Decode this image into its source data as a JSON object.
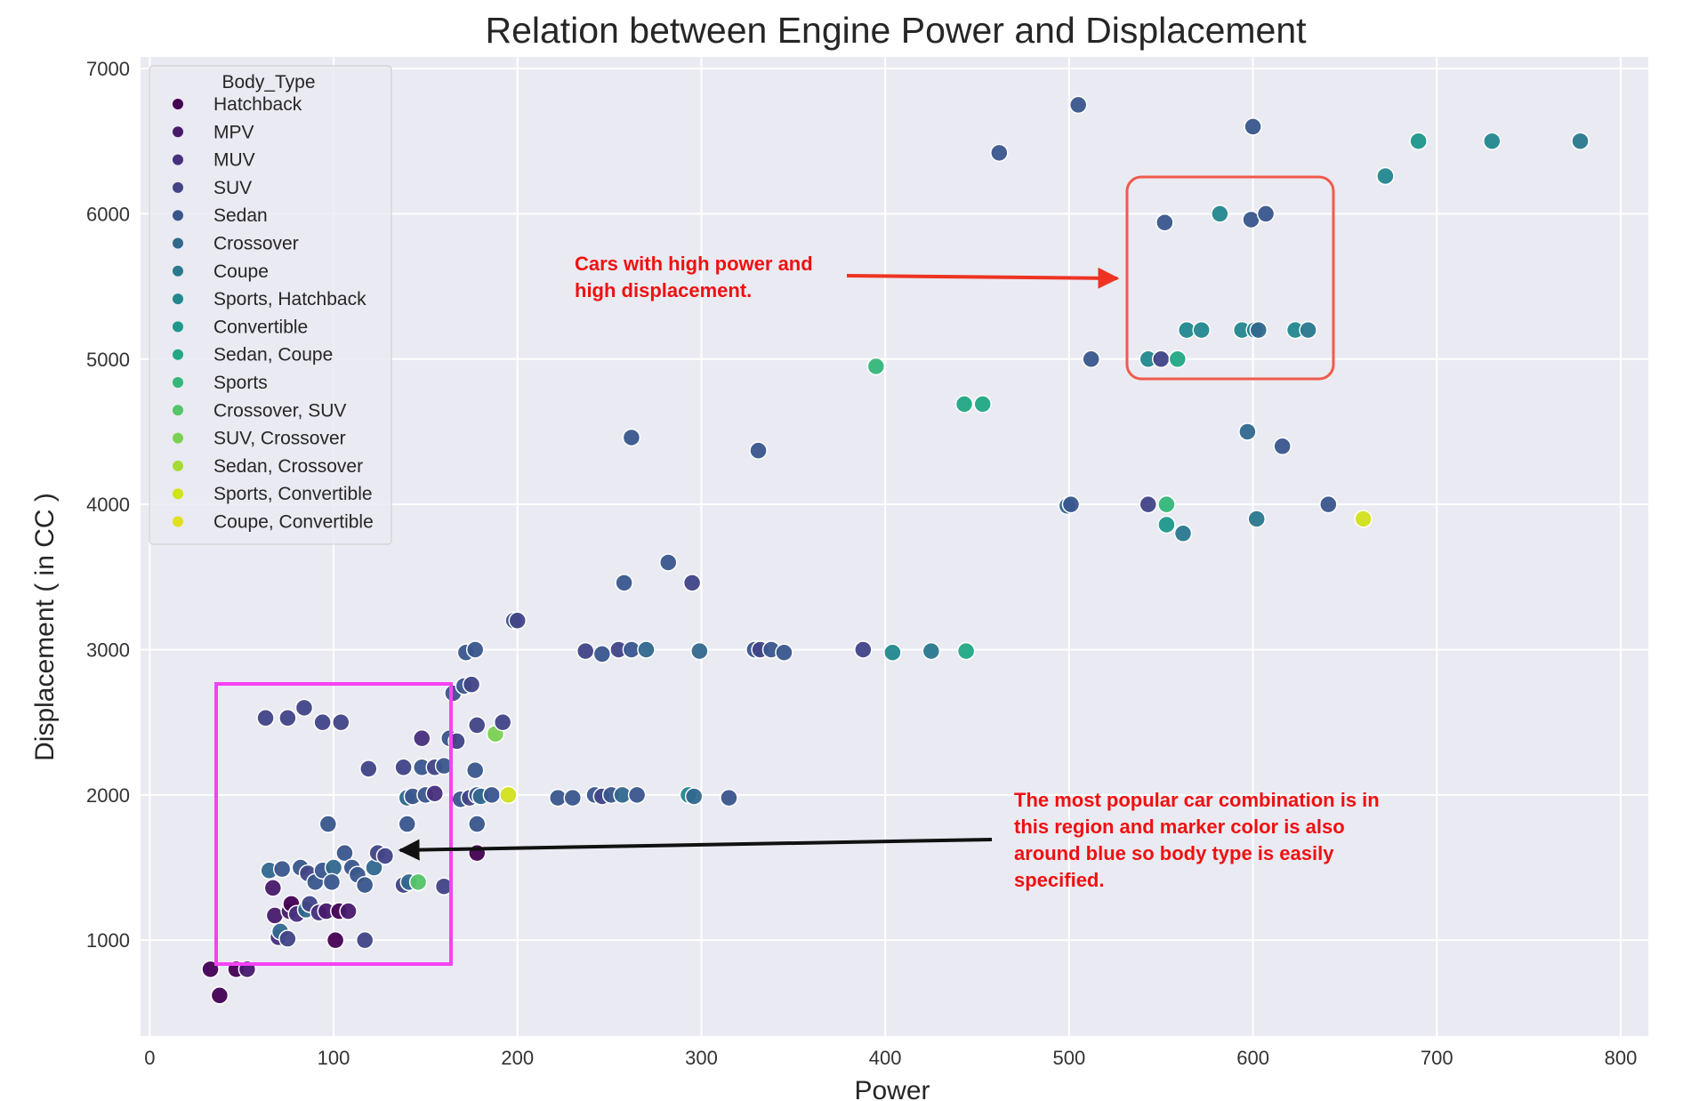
{
  "chart_data": {
    "type": "scatter",
    "title": "Relation between Engine Power and Displacement",
    "xlabel": "Power",
    "ylabel": "Displacement ( in CC )",
    "xlim": [
      -5,
      815
    ],
    "ylim": [
      340,
      7080
    ],
    "xticks": [
      0,
      100,
      200,
      300,
      400,
      500,
      600,
      700,
      800
    ],
    "yticks": [
      1000,
      2000,
      3000,
      4000,
      5000,
      6000,
      7000
    ],
    "grid": true,
    "background": "#eaeaf2",
    "legend": {
      "title": "Body_Type",
      "placement": "top-left",
      "entries": [
        {
          "name": "Hatchback",
          "color": "#440154"
        },
        {
          "name": "MPV",
          "color": "#481a6c"
        },
        {
          "name": "MUV",
          "color": "#472f7d"
        },
        {
          "name": "SUV",
          "color": "#414487"
        },
        {
          "name": "Sedan",
          "color": "#39568c"
        },
        {
          "name": "Crossover",
          "color": "#31688e"
        },
        {
          "name": "Coupe",
          "color": "#2a788e"
        },
        {
          "name": "Sports, Hatchback",
          "color": "#23888e"
        },
        {
          "name": "Convertible",
          "color": "#1f988b"
        },
        {
          "name": "Sedan, Coupe",
          "color": "#22a884"
        },
        {
          "name": "Sports",
          "color": "#35b779"
        },
        {
          "name": "Crossover, SUV",
          "color": "#54c568"
        },
        {
          "name": "SUV, Crossover",
          "color": "#7ad151"
        },
        {
          "name": "Sedan, Crossover",
          "color": "#a5db36"
        },
        {
          "name": "Sports, Convertible",
          "color": "#d2e21b"
        },
        {
          "name": "Coupe, Convertible",
          "color": "#e0e020"
        }
      ]
    },
    "points": [
      {
        "x": 33,
        "y": 800,
        "c": 0
      },
      {
        "x": 38,
        "y": 620,
        "c": 0
      },
      {
        "x": 47,
        "y": 800,
        "c": 0
      },
      {
        "x": 53,
        "y": 800,
        "c": 1
      },
      {
        "x": 63,
        "y": 2530,
        "c": 3
      },
      {
        "x": 75,
        "y": 2530,
        "c": 3
      },
      {
        "x": 84,
        "y": 2600,
        "c": 3
      },
      {
        "x": 94,
        "y": 2500,
        "c": 3
      },
      {
        "x": 104,
        "y": 2500,
        "c": 3
      },
      {
        "x": 97,
        "y": 1800,
        "c": 4
      },
      {
        "x": 65,
        "y": 1480,
        "c": 5
      },
      {
        "x": 72,
        "y": 1490,
        "c": 4
      },
      {
        "x": 82,
        "y": 1500,
        "c": 4
      },
      {
        "x": 86,
        "y": 1460,
        "c": 3
      },
      {
        "x": 90,
        "y": 1400,
        "c": 4
      },
      {
        "x": 94,
        "y": 1480,
        "c": 4
      },
      {
        "x": 100,
        "y": 1500,
        "c": 5
      },
      {
        "x": 99,
        "y": 1400,
        "c": 4
      },
      {
        "x": 106,
        "y": 1600,
        "c": 4
      },
      {
        "x": 110,
        "y": 1500,
        "c": 4
      },
      {
        "x": 113,
        "y": 1450,
        "c": 4
      },
      {
        "x": 117,
        "y": 1380,
        "c": 4
      },
      {
        "x": 122,
        "y": 1500,
        "c": 5
      },
      {
        "x": 124,
        "y": 1600,
        "c": 3
      },
      {
        "x": 128,
        "y": 1580,
        "c": 3
      },
      {
        "x": 67,
        "y": 1360,
        "c": 1
      },
      {
        "x": 68,
        "y": 1170,
        "c": 1
      },
      {
        "x": 70,
        "y": 1020,
        "c": 2
      },
      {
        "x": 71,
        "y": 1060,
        "c": 5
      },
      {
        "x": 76,
        "y": 1200,
        "c": 1
      },
      {
        "x": 77,
        "y": 1250,
        "c": 0
      },
      {
        "x": 75,
        "y": 1010,
        "c": 3
      },
      {
        "x": 80,
        "y": 1180,
        "c": 2
      },
      {
        "x": 85,
        "y": 1210,
        "c": 5
      },
      {
        "x": 87,
        "y": 1250,
        "c": 3
      },
      {
        "x": 92,
        "y": 1190,
        "c": 2
      },
      {
        "x": 96,
        "y": 1200,
        "c": 1
      },
      {
        "x": 103,
        "y": 1200,
        "c": 0
      },
      {
        "x": 108,
        "y": 1200,
        "c": 1
      },
      {
        "x": 101,
        "y": 1000,
        "c": 0
      },
      {
        "x": 117,
        "y": 1000,
        "c": 3
      },
      {
        "x": 138,
        "y": 1380,
        "c": 3
      },
      {
        "x": 141,
        "y": 1400,
        "c": 5
      },
      {
        "x": 146,
        "y": 1400,
        "c": 11
      },
      {
        "x": 160,
        "y": 1370,
        "c": 3
      },
      {
        "x": 140,
        "y": 1800,
        "c": 4
      },
      {
        "x": 140,
        "y": 1980,
        "c": 5
      },
      {
        "x": 143,
        "y": 1990,
        "c": 4
      },
      {
        "x": 150,
        "y": 2000,
        "c": 4
      },
      {
        "x": 155,
        "y": 2010,
        "c": 2
      },
      {
        "x": 169,
        "y": 1970,
        "c": 4
      },
      {
        "x": 174,
        "y": 1980,
        "c": 3
      },
      {
        "x": 178,
        "y": 2000,
        "c": 4
      },
      {
        "x": 180,
        "y": 1990,
        "c": 5
      },
      {
        "x": 186,
        "y": 2000,
        "c": 4
      },
      {
        "x": 195,
        "y": 2000,
        "c": 14
      },
      {
        "x": 178,
        "y": 1800,
        "c": 4
      },
      {
        "x": 178,
        "y": 1600,
        "c": 0
      },
      {
        "x": 138,
        "y": 2190,
        "c": 3
      },
      {
        "x": 148,
        "y": 2190,
        "c": 4
      },
      {
        "x": 155,
        "y": 2190,
        "c": 3
      },
      {
        "x": 160,
        "y": 2200,
        "c": 4
      },
      {
        "x": 119,
        "y": 2180,
        "c": 3
      },
      {
        "x": 148,
        "y": 2390,
        "c": 2
      },
      {
        "x": 163,
        "y": 2390,
        "c": 4
      },
      {
        "x": 167,
        "y": 2370,
        "c": 3
      },
      {
        "x": 177,
        "y": 2170,
        "c": 4
      },
      {
        "x": 178,
        "y": 2480,
        "c": 3
      },
      {
        "x": 188,
        "y": 2420,
        "c": 12
      },
      {
        "x": 192,
        "y": 2500,
        "c": 3
      },
      {
        "x": 165,
        "y": 2700,
        "c": 4
      },
      {
        "x": 171,
        "y": 2750,
        "c": 4
      },
      {
        "x": 175,
        "y": 2760,
        "c": 3
      },
      {
        "x": 172,
        "y": 2980,
        "c": 4
      },
      {
        "x": 177,
        "y": 3000,
        "c": 4
      },
      {
        "x": 198,
        "y": 3200,
        "c": 4
      },
      {
        "x": 200,
        "y": 3200,
        "c": 3
      },
      {
        "x": 222,
        "y": 1980,
        "c": 4
      },
      {
        "x": 230,
        "y": 1980,
        "c": 4
      },
      {
        "x": 242,
        "y": 2000,
        "c": 4
      },
      {
        "x": 246,
        "y": 1990,
        "c": 3
      },
      {
        "x": 251,
        "y": 2000,
        "c": 4
      },
      {
        "x": 257,
        "y": 2000,
        "c": 5
      },
      {
        "x": 265,
        "y": 2000,
        "c": 4
      },
      {
        "x": 293,
        "y": 2000,
        "c": 7
      },
      {
        "x": 296,
        "y": 1990,
        "c": 5
      },
      {
        "x": 315,
        "y": 1980,
        "c": 4
      },
      {
        "x": 237,
        "y": 2990,
        "c": 3
      },
      {
        "x": 246,
        "y": 2970,
        "c": 4
      },
      {
        "x": 255,
        "y": 3000,
        "c": 3
      },
      {
        "x": 262,
        "y": 3000,
        "c": 4
      },
      {
        "x": 270,
        "y": 3000,
        "c": 5
      },
      {
        "x": 299,
        "y": 2990,
        "c": 5
      },
      {
        "x": 329,
        "y": 3000,
        "c": 4
      },
      {
        "x": 332,
        "y": 3000,
        "c": 3
      },
      {
        "x": 338,
        "y": 3000,
        "c": 4
      },
      {
        "x": 345,
        "y": 2980,
        "c": 4
      },
      {
        "x": 388,
        "y": 3000,
        "c": 3
      },
      {
        "x": 404,
        "y": 2980,
        "c": 7
      },
      {
        "x": 425,
        "y": 2990,
        "c": 6
      },
      {
        "x": 444,
        "y": 2990,
        "c": 9
      },
      {
        "x": 258,
        "y": 3460,
        "c": 4
      },
      {
        "x": 282,
        "y": 3600,
        "c": 4
      },
      {
        "x": 295,
        "y": 3460,
        "c": 3
      },
      {
        "x": 262,
        "y": 4460,
        "c": 4
      },
      {
        "x": 331,
        "y": 4370,
        "c": 4
      },
      {
        "x": 395,
        "y": 4950,
        "c": 10
      },
      {
        "x": 443,
        "y": 4690,
        "c": 9
      },
      {
        "x": 453,
        "y": 4690,
        "c": 9
      },
      {
        "x": 462,
        "y": 6420,
        "c": 4
      },
      {
        "x": 505,
        "y": 6750,
        "c": 4
      },
      {
        "x": 600,
        "y": 6600,
        "c": 4
      },
      {
        "x": 499,
        "y": 3990,
        "c": 5
      },
      {
        "x": 501,
        "y": 4000,
        "c": 4
      },
      {
        "x": 512,
        "y": 5000,
        "c": 4
      },
      {
        "x": 543,
        "y": 4000,
        "c": 3
      },
      {
        "x": 553,
        "y": 4000,
        "c": 10
      },
      {
        "x": 553,
        "y": 3860,
        "c": 8
      },
      {
        "x": 562,
        "y": 3800,
        "c": 6
      },
      {
        "x": 543,
        "y": 5000,
        "c": 7
      },
      {
        "x": 550,
        "y": 5000,
        "c": 3
      },
      {
        "x": 559,
        "y": 5000,
        "c": 9
      },
      {
        "x": 552,
        "y": 5940,
        "c": 4
      },
      {
        "x": 564,
        "y": 5200,
        "c": 7
      },
      {
        "x": 572,
        "y": 5200,
        "c": 7
      },
      {
        "x": 582,
        "y": 6000,
        "c": 7
      },
      {
        "x": 594,
        "y": 5200,
        "c": 7
      },
      {
        "x": 601,
        "y": 5200,
        "c": 6
      },
      {
        "x": 603,
        "y": 5200,
        "c": 5
      },
      {
        "x": 623,
        "y": 5200,
        "c": 7
      },
      {
        "x": 630,
        "y": 5200,
        "c": 6
      },
      {
        "x": 599,
        "y": 5960,
        "c": 4
      },
      {
        "x": 607,
        "y": 6000,
        "c": 4
      },
      {
        "x": 597,
        "y": 4500,
        "c": 5
      },
      {
        "x": 616,
        "y": 4400,
        "c": 4
      },
      {
        "x": 602,
        "y": 3900,
        "c": 6
      },
      {
        "x": 641,
        "y": 4000,
        "c": 4
      },
      {
        "x": 660,
        "y": 3900,
        "c": 14
      },
      {
        "x": 672,
        "y": 6260,
        "c": 7
      },
      {
        "x": 690,
        "y": 6500,
        "c": 8
      },
      {
        "x": 730,
        "y": 6500,
        "c": 7
      },
      {
        "x": 778,
        "y": 6500,
        "c": 6
      }
    ],
    "annotations": [
      {
        "text_lines": [
          "Cars with high power and",
          "high displacement."
        ],
        "color": "#ee1111"
      },
      {
        "text_lines": [
          "The most popular car combination is in",
          "this region and marker color is also",
          "around blue so body type is easily",
          "specified."
        ],
        "color": "#ee1111"
      }
    ],
    "annotation_colors": {
      "red_box": "#f05a4b",
      "magenta_box": "#f542f5",
      "red_arrow": "#ee3322",
      "black_arrow": "#111111"
    }
  }
}
